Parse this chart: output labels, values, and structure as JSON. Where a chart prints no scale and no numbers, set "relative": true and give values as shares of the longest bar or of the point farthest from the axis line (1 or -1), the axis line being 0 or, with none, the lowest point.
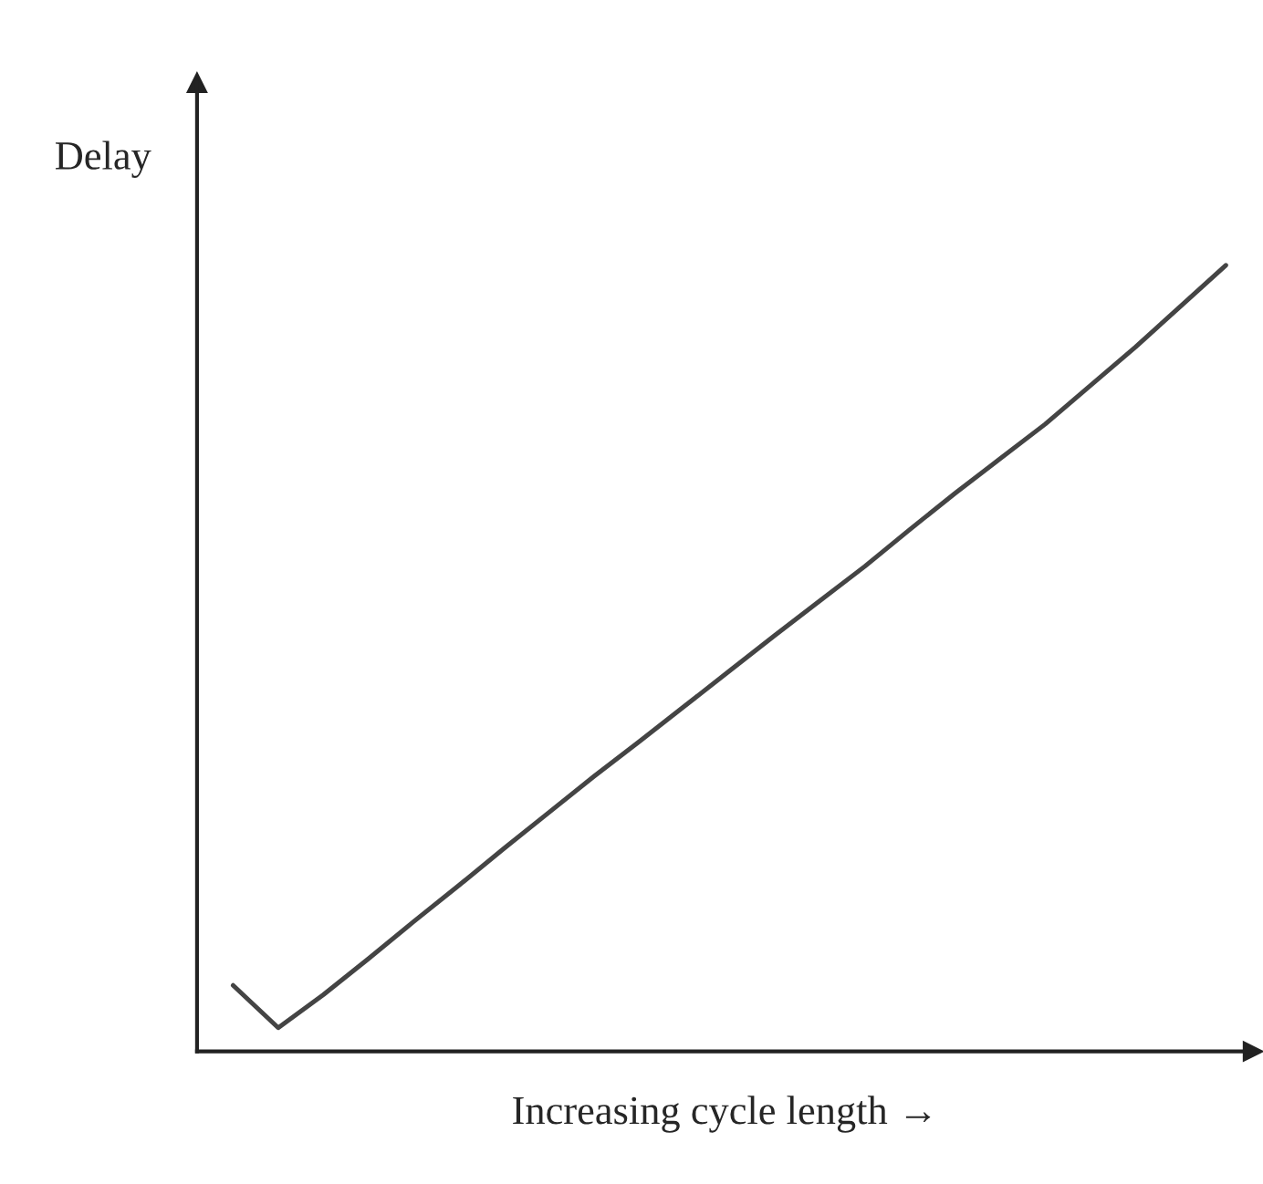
{
  "chart_data": {
    "type": "line",
    "relative": true,
    "xlabel": "Increasing cycle length →",
    "ylabel": "Delay",
    "marker": "none",
    "line_style": "solid",
    "categories": [
      null,
      null,
      null,
      null,
      null,
      null,
      null,
      null,
      null,
      null,
      null,
      null,
      null,
      null,
      null,
      null,
      null,
      null,
      null,
      null,
      null,
      null,
      null
    ],
    "series": [
      {
        "color": "#444444",
        "values": [
          0.084,
          0.03,
          0.072,
          0.118,
          0.165,
          0.211,
          0.258,
          0.304,
          0.35,
          0.394,
          0.439,
          0.484,
          0.529,
          0.573,
          0.617,
          0.664,
          0.71,
          0.754,
          0.798,
          0.847,
          0.896,
          0.948,
          1
        ]
      }
    ]
  }
}
